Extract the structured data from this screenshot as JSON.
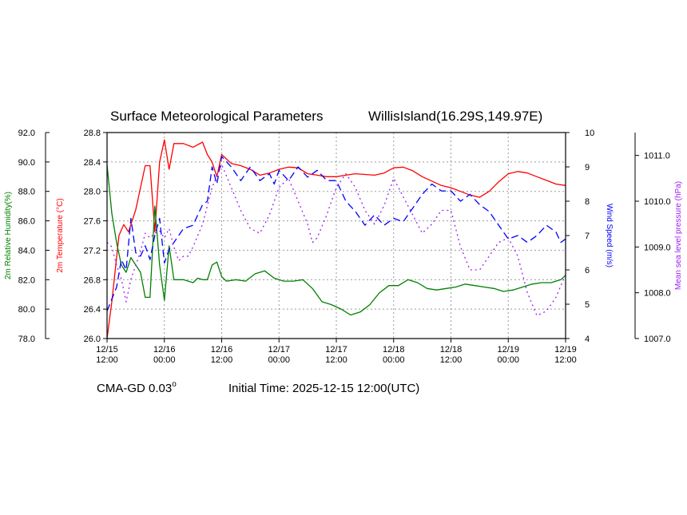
{
  "chart_data": {
    "type": "line",
    "title": "Surface Meteorological Parameters",
    "location": "WillisIsland(16.29S,149.97E)",
    "model": "CMA-GD 0.03",
    "model_degree_symbol": "o",
    "init_time": "Initial Time: 2025-12-15 12:00(UTC)",
    "grid": true,
    "x_ticks": [
      {
        "date": "12/15",
        "time": "12:00",
        "h": 0
      },
      {
        "date": "12/16",
        "time": "00:00",
        "h": 12
      },
      {
        "date": "12/16",
        "time": "12:00",
        "h": 24
      },
      {
        "date": "12/17",
        "time": "00:00",
        "h": 36
      },
      {
        "date": "12/17",
        "time": "12:00",
        "h": 48
      },
      {
        "date": "12/18",
        "time": "00:00",
        "h": 60
      },
      {
        "date": "12/18",
        "time": "12:00",
        "h": 72
      },
      {
        "date": "12/19",
        "time": "00:00",
        "h": 84
      },
      {
        "date": "12/19",
        "time": "12:00",
        "h": 96
      }
    ],
    "x_range": [
      0,
      96
    ],
    "axes": {
      "temperature": {
        "label": "2m Temperature (°C)",
        "color": "#ff0000",
        "range": [
          26.0,
          28.8
        ],
        "ticks": [
          "26.0",
          "26.4",
          "26.8",
          "27.2",
          "27.6",
          "28.0",
          "28.4",
          "28.8"
        ]
      },
      "humidity": {
        "label": "2m Relative Humidity(%)",
        "color": "#008000",
        "range": [
          78.0,
          92.0
        ],
        "ticks": [
          "78.0",
          "80.0",
          "82.0",
          "84.0",
          "86.0",
          "88.0",
          "90.0",
          "92.0"
        ]
      },
      "wind": {
        "label": "Wind Speed (m/s)",
        "color": "#0000ff",
        "range": [
          4,
          10
        ],
        "ticks": [
          "4",
          "5",
          "6",
          "7",
          "8",
          "9",
          "10"
        ]
      },
      "pressure": {
        "label": "Mean sea level pressure (hPa)",
        "color": "#a020f0",
        "range": [
          1007.0,
          1011.5
        ],
        "ticks": [
          "1007.0",
          "1008.0",
          "1009.0",
          "1010.0",
          "1011.0"
        ]
      }
    },
    "series": [
      {
        "name": "2m Temperature (°C)",
        "axis": "temperature",
        "color": "#ff0000",
        "dash": "",
        "points": [
          [
            0,
            26.0
          ],
          [
            1,
            26.5
          ],
          [
            2.5,
            27.4
          ],
          [
            3.5,
            27.55
          ],
          [
            4.5,
            27.45
          ],
          [
            6,
            27.75
          ],
          [
            8,
            28.35
          ],
          [
            9,
            28.35
          ],
          [
            10,
            27.45
          ],
          [
            11,
            28.4
          ],
          [
            12,
            28.7
          ],
          [
            13,
            28.3
          ],
          [
            14,
            28.65
          ],
          [
            16,
            28.65
          ],
          [
            18,
            28.6
          ],
          [
            20,
            28.67
          ],
          [
            21,
            28.5
          ],
          [
            22,
            28.4
          ],
          [
            23,
            28.2
          ],
          [
            24,
            28.5
          ],
          [
            26,
            28.38
          ],
          [
            28,
            28.35
          ],
          [
            30,
            28.3
          ],
          [
            32,
            28.22
          ],
          [
            34,
            28.25
          ],
          [
            36,
            28.3
          ],
          [
            38,
            28.33
          ],
          [
            40,
            28.32
          ],
          [
            42,
            28.24
          ],
          [
            44,
            28.22
          ],
          [
            46,
            28.2
          ],
          [
            48,
            28.2
          ],
          [
            50,
            28.22
          ],
          [
            52,
            28.24
          ],
          [
            54,
            28.23
          ],
          [
            56,
            28.22
          ],
          [
            58,
            28.25
          ],
          [
            60,
            28.32
          ],
          [
            62,
            28.33
          ],
          [
            64,
            28.28
          ],
          [
            66,
            28.2
          ],
          [
            68,
            28.14
          ],
          [
            70,
            28.08
          ],
          [
            72,
            28.05
          ],
          [
            74,
            28.0
          ],
          [
            76,
            27.95
          ],
          [
            78,
            27.92
          ],
          [
            80,
            28.0
          ],
          [
            82,
            28.13
          ],
          [
            84,
            28.24
          ],
          [
            86,
            28.27
          ],
          [
            88,
            28.25
          ],
          [
            90,
            28.2
          ],
          [
            92,
            28.15
          ],
          [
            94,
            28.1
          ],
          [
            96,
            28.08
          ]
        ]
      },
      {
        "name": "2m Relative Humidity(%)",
        "axis": "humidity",
        "color": "#008000",
        "dash": "",
        "points": [
          [
            0,
            89.8
          ],
          [
            1,
            86.5
          ],
          [
            2,
            84.5
          ],
          [
            3,
            83.0
          ],
          [
            4,
            82.5
          ],
          [
            5,
            83.5
          ],
          [
            6,
            83.0
          ],
          [
            7,
            82.5
          ],
          [
            8,
            80.8
          ],
          [
            9,
            80.8
          ],
          [
            10,
            87.0
          ],
          [
            11,
            83.0
          ],
          [
            12,
            80.6
          ],
          [
            13,
            84.3
          ],
          [
            14,
            82.0
          ],
          [
            16,
            82.0
          ],
          [
            18,
            81.8
          ],
          [
            19,
            82.1
          ],
          [
            20,
            82.0
          ],
          [
            21,
            82.0
          ],
          [
            22,
            83.0
          ],
          [
            23,
            83.2
          ],
          [
            24,
            82.2
          ],
          [
            25,
            81.9
          ],
          [
            27,
            82.0
          ],
          [
            29,
            81.9
          ],
          [
            31,
            82.4
          ],
          [
            33,
            82.6
          ],
          [
            35,
            82.1
          ],
          [
            37,
            81.9
          ],
          [
            39,
            81.9
          ],
          [
            41,
            82.0
          ],
          [
            43,
            81.4
          ],
          [
            45,
            80.5
          ],
          [
            47,
            80.3
          ],
          [
            49,
            80.0
          ],
          [
            51,
            79.6
          ],
          [
            53,
            79.8
          ],
          [
            55,
            80.3
          ],
          [
            57,
            81.1
          ],
          [
            59,
            81.6
          ],
          [
            61,
            81.6
          ],
          [
            63,
            82.0
          ],
          [
            65,
            81.8
          ],
          [
            67,
            81.4
          ],
          [
            69,
            81.3
          ],
          [
            71,
            81.4
          ],
          [
            73,
            81.5
          ],
          [
            75,
            81.7
          ],
          [
            77,
            81.6
          ],
          [
            79,
            81.5
          ],
          [
            81,
            81.4
          ],
          [
            83,
            81.2
          ],
          [
            85,
            81.3
          ],
          [
            87,
            81.5
          ],
          [
            89,
            81.7
          ],
          [
            91,
            81.8
          ],
          [
            93,
            81.8
          ],
          [
            95,
            82.0
          ],
          [
            96,
            82.3
          ]
        ]
      },
      {
        "name": "Wind Speed (m/s)",
        "axis": "wind",
        "color": "#0000ff",
        "dash": "9,5",
        "points": [
          [
            0,
            4.8
          ],
          [
            2,
            5.5
          ],
          [
            3,
            6.3
          ],
          [
            4,
            6.0
          ],
          [
            5,
            7.5
          ],
          [
            6,
            6.5
          ],
          [
            7,
            6.4
          ],
          [
            8,
            6.7
          ],
          [
            9,
            6.3
          ],
          [
            10,
            7.0
          ],
          [
            11,
            7.5
          ],
          [
            12,
            6.2
          ],
          [
            13,
            6.6
          ],
          [
            14,
            6.8
          ],
          [
            16,
            7.2
          ],
          [
            18,
            7.3
          ],
          [
            20,
            7.9
          ],
          [
            21,
            8.0
          ],
          [
            22,
            9.0
          ],
          [
            23,
            8.5
          ],
          [
            24,
            9.3
          ],
          [
            26,
            9.0
          ],
          [
            28,
            8.6
          ],
          [
            30,
            9.0
          ],
          [
            32,
            8.6
          ],
          [
            34,
            8.8
          ],
          [
            35,
            8.5
          ],
          [
            36,
            8.9
          ],
          [
            38,
            8.6
          ],
          [
            40,
            9.0
          ],
          [
            42,
            8.7
          ],
          [
            44,
            8.9
          ],
          [
            46,
            8.6
          ],
          [
            48,
            8.6
          ],
          [
            50,
            8.0
          ],
          [
            52,
            7.7
          ],
          [
            54,
            7.3
          ],
          [
            56,
            7.6
          ],
          [
            58,
            7.3
          ],
          [
            60,
            7.5
          ],
          [
            62,
            7.4
          ],
          [
            64,
            7.8
          ],
          [
            66,
            8.2
          ],
          [
            68,
            8.5
          ],
          [
            70,
            8.3
          ],
          [
            72,
            8.3
          ],
          [
            74,
            8.0
          ],
          [
            76,
            8.2
          ],
          [
            78,
            7.9
          ],
          [
            80,
            7.7
          ],
          [
            82,
            7.3
          ],
          [
            84,
            6.9
          ],
          [
            86,
            7.0
          ],
          [
            88,
            6.8
          ],
          [
            90,
            7.0
          ],
          [
            92,
            7.3
          ],
          [
            94,
            7.1
          ],
          [
            95,
            6.8
          ],
          [
            96,
            6.9
          ]
        ]
      },
      {
        "name": "Mean sea level pressure (hPa)",
        "axis": "pressure",
        "color": "#a020f0",
        "dash": "2,4",
        "points": [
          [
            0,
            1009.1
          ],
          [
            1,
            1009.0
          ],
          [
            2,
            1008.6
          ],
          [
            3,
            1008.3
          ],
          [
            4,
            1007.8
          ],
          [
            5,
            1008.3
          ],
          [
            6,
            1008.6
          ],
          [
            7,
            1008.9
          ],
          [
            8,
            1009.3
          ],
          [
            9,
            1009.2
          ],
          [
            10,
            1009.3
          ],
          [
            11,
            1009.35
          ],
          [
            12,
            1009.2
          ],
          [
            13,
            1009.4
          ],
          [
            14,
            1009.0
          ],
          [
            15,
            1008.7
          ],
          [
            16,
            1008.8
          ],
          [
            17,
            1008.8
          ],
          [
            18,
            1009.0
          ],
          [
            20,
            1009.5
          ],
          [
            22,
            1010.3
          ],
          [
            24,
            1010.8
          ],
          [
            26,
            1010.3
          ],
          [
            28,
            1009.8
          ],
          [
            30,
            1009.4
          ],
          [
            32,
            1009.3
          ],
          [
            34,
            1009.7
          ],
          [
            36,
            1010.3
          ],
          [
            38,
            1010.5
          ],
          [
            40,
            1010.0
          ],
          [
            42,
            1009.5
          ],
          [
            43,
            1009.1
          ],
          [
            44,
            1009.2
          ],
          [
            46,
            1009.7
          ],
          [
            48,
            1010.3
          ],
          [
            50,
            1010.6
          ],
          [
            52,
            1010.3
          ],
          [
            54,
            1009.8
          ],
          [
            56,
            1009.5
          ],
          [
            58,
            1009.9
          ],
          [
            60,
            1010.5
          ],
          [
            62,
            1010.1
          ],
          [
            64,
            1009.7
          ],
          [
            66,
            1009.3
          ],
          [
            68,
            1009.5
          ],
          [
            70,
            1009.8
          ],
          [
            72,
            1009.8
          ],
          [
            74,
            1009.0
          ],
          [
            76,
            1008.5
          ],
          [
            78,
            1008.5
          ],
          [
            80,
            1008.8
          ],
          [
            82,
            1009.1
          ],
          [
            84,
            1009.2
          ],
          [
            86,
            1008.8
          ],
          [
            88,
            1008.0
          ],
          [
            90,
            1007.5
          ],
          [
            92,
            1007.6
          ],
          [
            94,
            1007.9
          ],
          [
            96,
            1008.4
          ]
        ]
      }
    ]
  }
}
